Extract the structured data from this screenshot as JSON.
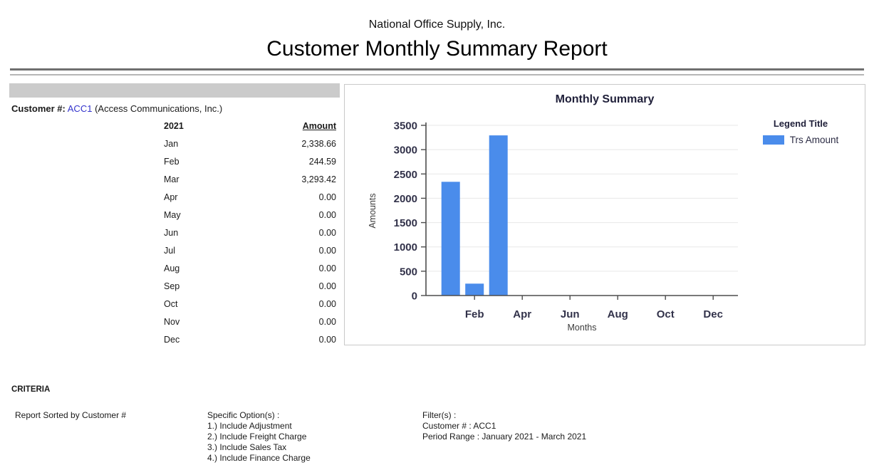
{
  "header": {
    "company": "National Office Supply, Inc.",
    "title": "Customer Monthly Summary Report"
  },
  "customer": {
    "label": "Customer #:",
    "code": "ACC1",
    "name": "(Access Communications, Inc.)"
  },
  "table": {
    "year_header": "2021",
    "amount_header": "Amount",
    "rows": [
      {
        "month": "Jan",
        "amount": "2,338.66"
      },
      {
        "month": "Feb",
        "amount": "244.59"
      },
      {
        "month": "Mar",
        "amount": "3,293.42"
      },
      {
        "month": "Apr",
        "amount": "0.00"
      },
      {
        "month": "May",
        "amount": "0.00"
      },
      {
        "month": "Jun",
        "amount": "0.00"
      },
      {
        "month": "Jul",
        "amount": "0.00"
      },
      {
        "month": "Aug",
        "amount": "0.00"
      },
      {
        "month": "Sep",
        "amount": "0.00"
      },
      {
        "month": "Oct",
        "amount": "0.00"
      },
      {
        "month": "Nov",
        "amount": "0.00"
      },
      {
        "month": "Dec",
        "amount": "0.00"
      }
    ]
  },
  "chart_data": {
    "type": "bar",
    "title": "Monthly Summary",
    "xlabel": "Months",
    "ylabel": "Amounts",
    "categories": [
      "Jan",
      "Feb",
      "Mar",
      "Apr",
      "May",
      "Jun",
      "Jul",
      "Aug",
      "Sep",
      "Oct",
      "Nov",
      "Dec"
    ],
    "values": [
      2338.66,
      244.59,
      3293.42,
      0,
      0,
      0,
      0,
      0,
      0,
      0,
      0,
      0
    ],
    "series_name": "Trs Amount",
    "legend_title": "Legend Title",
    "legend_position": "right",
    "ylim": [
      0,
      3500
    ],
    "ytick_step": 500,
    "xtick_labels_shown": [
      "Feb",
      "Apr",
      "Jun",
      "Aug",
      "Oct",
      "Dec"
    ],
    "grid": true,
    "bar_color": "#4a8ceb"
  },
  "criteria": {
    "heading": "CRITERIA",
    "sorted_by": "Report Sorted by Customer #",
    "options_title": "Specific Option(s) :",
    "options": [
      "1.) Include Adjustment",
      "2.) Include Freight Charge",
      "3.) Include Sales Tax",
      "4.) Include Finance Charge"
    ],
    "filters_title": "Filter(s) :",
    "filters": [
      "Customer # : ACC1",
      "Period Range : January 2021 - March 2021"
    ]
  },
  "colors": {
    "link_blue": "#3333cc",
    "bar_blue": "#4a8ceb",
    "grid_line": "#e7e7e7",
    "axis_line": "#4d4d4d",
    "gray_bar": "#cbcbcb",
    "panel_border": "#c9c9c9",
    "rule_dark": "#6f6f6f",
    "rule_light": "#b6b6b6",
    "chart_text": "#32324a"
  }
}
